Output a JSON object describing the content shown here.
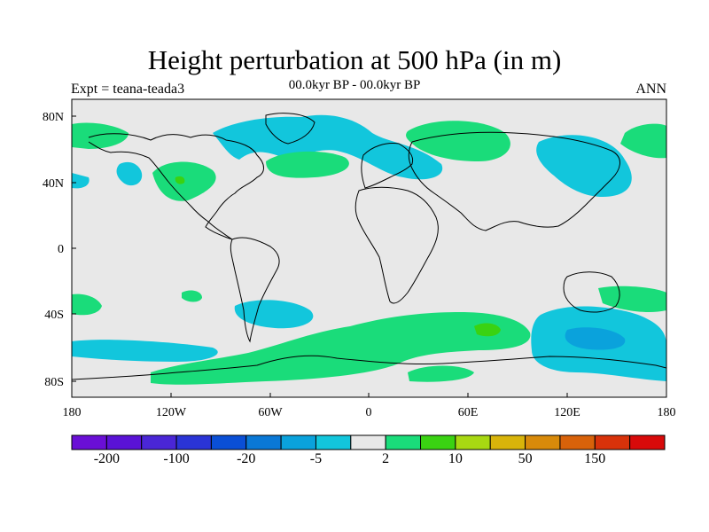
{
  "title": "Height perturbation at 500 hPa (in m)",
  "subtitle_left": "Expt = teana-teada3",
  "subtitle_center": "00.0kyr BP - 00.0kyr BP",
  "subtitle_right": "ANN",
  "map": {
    "background_color": "#e8e8e8",
    "lat_ticks": [
      "80N",
      "40N",
      "0",
      "40S",
      "80S"
    ],
    "lon_ticks": [
      "180",
      "120W",
      "60W",
      "0",
      "60E",
      "120E",
      "180"
    ]
  },
  "colorbar": {
    "colors": [
      "#6a0fd6",
      "#5a12d6",
      "#4a26d6",
      "#2a34d6",
      "#0a4fd6",
      "#0a78d6",
      "#0aa2dc",
      "#12c6dc",
      "#e8e8e8",
      "#1adc7a",
      "#3ad212",
      "#a8d812",
      "#d8b40a",
      "#d88a0a",
      "#d8620a",
      "#d8320a",
      "#d80a0a"
    ],
    "labels": [
      "-200",
      "-100",
      "-20",
      "-5",
      "2",
      "10",
      "50",
      "150"
    ]
  }
}
